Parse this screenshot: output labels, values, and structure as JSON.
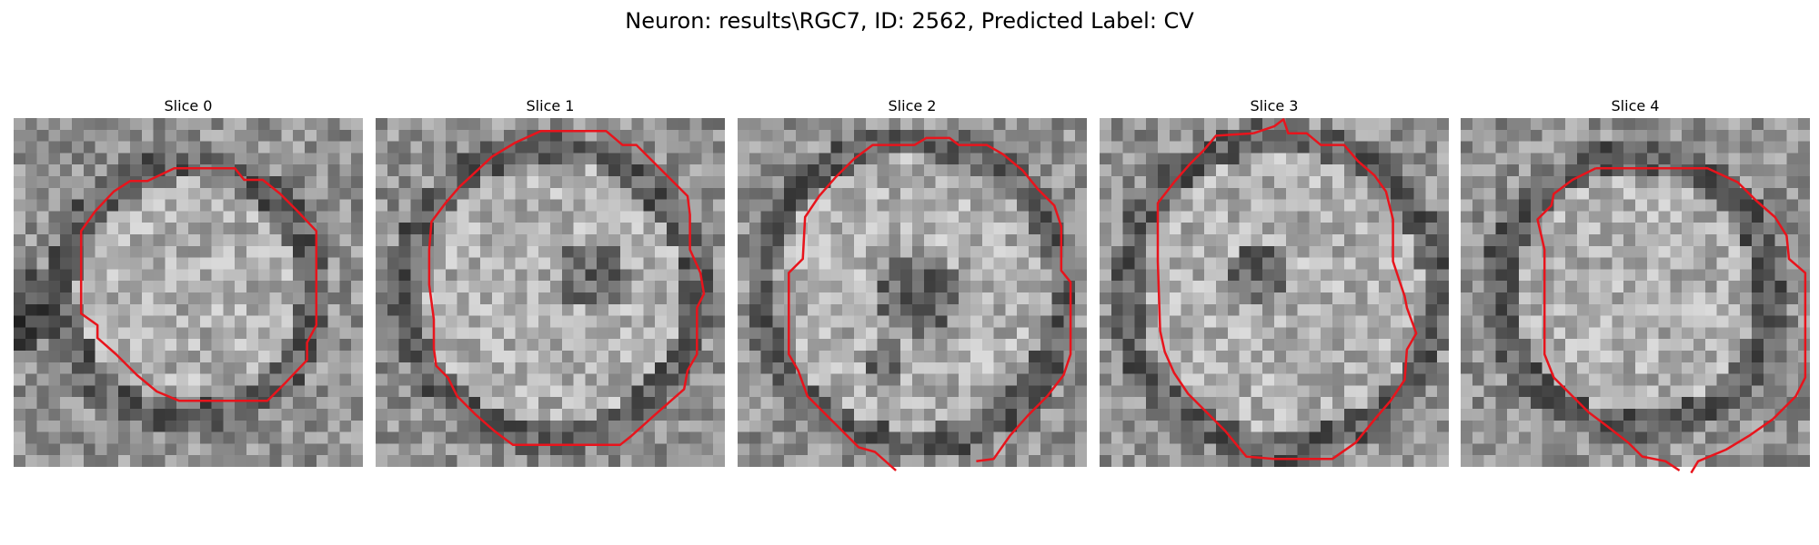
{
  "figure": {
    "title": "Neuron: results\\RGC7, ID: 2562, Predicted Label: CV"
  },
  "slices": [
    {
      "title": "Slice 0"
    },
    {
      "title": "Slice 1"
    },
    {
      "title": "Slice 2"
    },
    {
      "title": "Slice 3"
    },
    {
      "title": "Slice 4"
    }
  ],
  "colors": {
    "contour": "#e8141c",
    "background": "#ffffff"
  }
}
